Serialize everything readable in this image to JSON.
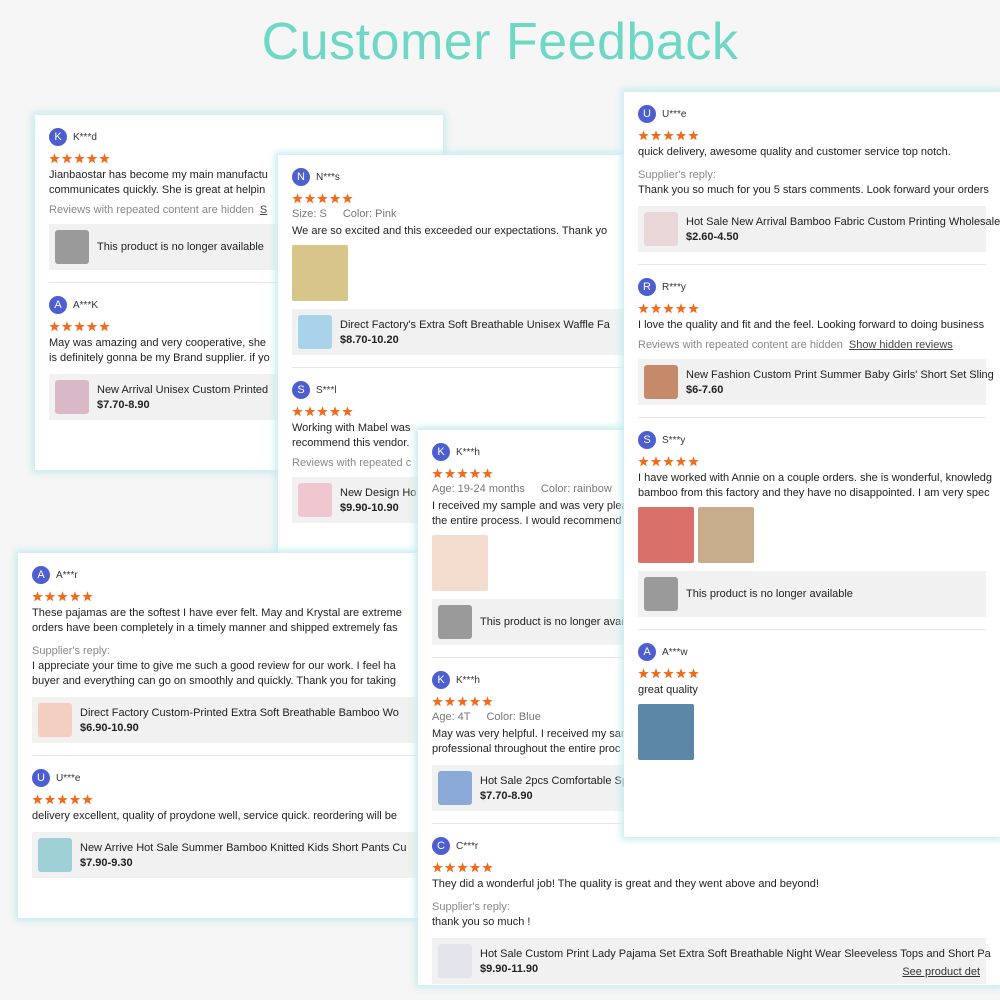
{
  "title": "Customer Feedback",
  "cards": [
    {
      "reviews": [
        {
          "initial": "K",
          "name": "K***d",
          "lines": [
            "Jianbaostar has become my main manufactu",
            "communicates quickly. She is great at helpin"
          ],
          "note": "Reviews with repeated content are hidden",
          "note_link": "S",
          "product": {
            "name": "This product is no longer available",
            "thumb": "#9a9a9a"
          }
        },
        {
          "initial": "A",
          "name": "A***K",
          "lines": [
            "May was amazing and very cooperative, she",
            "is definitely gonna be my Brand supplier. if yo"
          ],
          "product": {
            "name": "New Arrival Unisex Custom Printed",
            "price": "$7.70-8.90",
            "thumb": "#d9b8c8"
          }
        }
      ]
    },
    {
      "reviews": [
        {
          "initial": "N",
          "name": "N***s",
          "attributes": [
            {
              "label": "Size:",
              "value": "S"
            },
            {
              "label": "Color:",
              "value": "Pink"
            }
          ],
          "lines": [
            "We are so excited and this exceeded our expectations. Thank yo"
          ],
          "photos": [
            "#d8c58a"
          ],
          "product": {
            "name": "Direct Factory's Extra Soft Breathable Unisex Waffle Fa",
            "price": "$8.70-10.20",
            "thumb": "#a9d3e8"
          }
        },
        {
          "initial": "S",
          "name": "S***l",
          "lines": [
            "Working with Mabel was",
            "recommend this vendor."
          ],
          "note": "Reviews with repeated c",
          "product": {
            "name": "New Design Ho",
            "price": "$9.90-10.90",
            "thumb": "#f0c6cf"
          }
        }
      ]
    },
    {
      "reviews": [
        {
          "initial": "A",
          "name": "A***r",
          "lines": [
            "These pajamas are the softest I have ever felt. May and Krystal are extreme",
            "orders have been completely in a timely manner and shipped extremely fas"
          ],
          "reply_label": "Supplier's reply:",
          "reply_lines": [
            "I appreciate your time to give me such a good review for our work. I feel ha",
            "buyer and everything can go on smoothly and quickly. Thank you for taking"
          ],
          "product": {
            "name": "Direct Factory Custom-Printed Extra Soft Breathable Bamboo Wo",
            "price": "$6.90-10.90",
            "thumb": "#f2cfc0"
          }
        },
        {
          "initial": "U",
          "name": "U***e",
          "lines": [
            "delivery excellent, quality of proydone well, service quick. reordering will be"
          ],
          "product": {
            "name": "New Arrive Hot Sale Summer Bamboo Knitted Kids Short Pants Cu",
            "price": "$7.90-9.30",
            "thumb": "#9fd0d6"
          }
        }
      ]
    },
    {
      "reviews": [
        {
          "initial": "K",
          "name": "K***h",
          "attributes": [
            {
              "label": "Age:",
              "value": "19-24 months"
            },
            {
              "label": "Color:",
              "value": "rainbow"
            }
          ],
          "lines": [
            "I received my sample and was very plea",
            "the entire process. I would recommend"
          ],
          "photos": [
            "#f3dccd"
          ],
          "product": {
            "name": "This product is no longer availa",
            "thumb": "#9a9a9a"
          }
        },
        {
          "initial": "K",
          "name": "K***h",
          "attributes": [
            {
              "label": "Age:",
              "value": "4T"
            },
            {
              "label": "Color:",
              "value": "Blue"
            }
          ],
          "lines": [
            "May was very helpful. I received my sar",
            "professional throughout the entire proc"
          ],
          "product": {
            "name": "Hot Sale 2pcs Comfortable Sp",
            "price": "$7.70-8.90",
            "thumb": "#8aa9d6"
          }
        },
        {
          "initial": "C",
          "name": "C***r",
          "lines": [
            "They did a wonderful job! The quality is great and they went above and beyond!"
          ],
          "reply_label": "Supplier's reply:",
          "reply_lines": [
            "thank you so much !"
          ],
          "product": {
            "name": "Hot Sale Custom Print Lady Pajama Set Extra Soft Breathable Night Wear Sleeveless Tops and Short Pa",
            "price": "$9.90-11.90",
            "link": "See product det",
            "thumb": "#e4e4ec"
          }
        }
      ]
    },
    {
      "reviews": [
        {
          "initial": "U",
          "name": "U***e",
          "lines": [
            "quick delivery, awesome quality and customer service top notch."
          ],
          "reply_label": "Supplier's reply:",
          "reply_lines": [
            "Thank you so much for you 5 stars comments. Look forward your orders"
          ],
          "product": {
            "name": "Hot Sale New Arrival Bamboo Fabric Custom Printing Wholesale",
            "price": "$2.60-4.50",
            "thumb": "#e9d6d6"
          }
        },
        {
          "initial": "R",
          "name": "R***y",
          "lines": [
            "I love the quality and fit and the feel. Looking forward to doing business"
          ],
          "note": "Reviews with repeated content are hidden",
          "note_link": "Show hidden reviews",
          "product": {
            "name": "New Fashion Custom Print Summer Baby Girls' Short Set Sling",
            "price": "$6-7.60",
            "thumb": "#c58a6a"
          }
        },
        {
          "initial": "S",
          "name": "S***y",
          "lines": [
            "I have worked with Annie on a couple orders. she is wonderful, knowledg",
            "bamboo from this factory and they have no disappointed. I am very spec"
          ],
          "photos": [
            "#d9706a",
            "#c7ad8c"
          ],
          "product": {
            "name": "This product is no longer available",
            "thumb": "#9a9a9a"
          }
        },
        {
          "initial": "A",
          "name": "A***w",
          "lines": [
            "great quality"
          ],
          "photos": [
            "#5c87a6"
          ]
        }
      ]
    }
  ]
}
